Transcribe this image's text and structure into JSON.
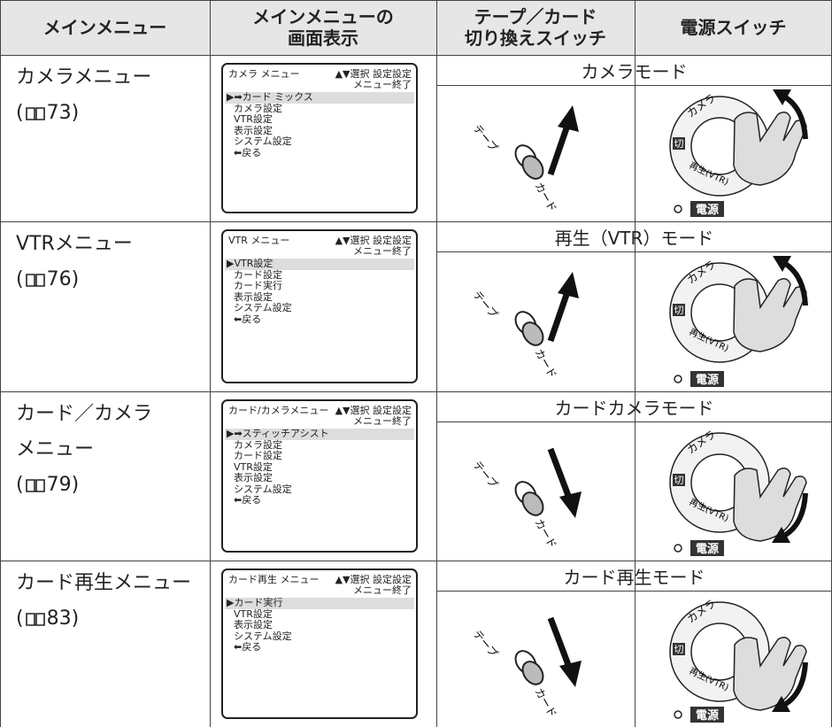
{
  "header": [
    [
      "メインメニュー"
    ],
    [
      "メインメニューの",
      "画面表示"
    ],
    [
      "テープ／カード",
      "切り換えスイッチ"
    ],
    [
      "電源スイッチ"
    ]
  ],
  "rows": [
    {
      "name": [
        "カメラメニュー"
      ],
      "ref": [
        "(",
        "73)"
      ],
      "screen": {
        "title": "カメラ メニュー",
        "controls": "▲▼選択 設定設定",
        "exit": "メニュー終了",
        "items": [
          "▶➡カード ミックス",
          "カメラ設定",
          "VTR設定",
          "表示設定",
          "システム設定",
          "⬅戻る"
        ]
      },
      "mode": "カメラモード",
      "switch": {
        "tape": "テープ",
        "card": "カード"
      },
      "power": {
        "camera": "カメラ",
        "off": "切",
        "play": "再生(VTR)",
        "label": "電源"
      }
    },
    {
      "name": [
        "VTRメニュー"
      ],
      "ref": [
        "(",
        "76)"
      ],
      "screen": {
        "title": "VTR メニュー",
        "controls": "▲▼選択 設定設定",
        "exit": "メニュー終了",
        "items": [
          "▶VTR設定",
          "カード設定",
          "カード実行",
          "表示設定",
          "システム設定",
          "⬅戻る"
        ]
      },
      "mode": "再生（VTR）モード",
      "switch": {
        "tape": "テープ",
        "card": "カード"
      },
      "power": {
        "camera": "カメラ",
        "off": "切",
        "play": "再生(VTR)",
        "label": "電源"
      }
    },
    {
      "name": [
        "カード／カメラ",
        "メニュー"
      ],
      "ref": [
        "(",
        "79)"
      ],
      "screen": {
        "title": "カード/カメラメニュー",
        "controls": "▲▼選択 設定設定",
        "exit": "メニュー終了",
        "items": [
          "▶➡スティッチアシスト",
          "カメラ設定",
          "カード設定",
          "VTR設定",
          "表示設定",
          "システム設定",
          "⬅戻る"
        ]
      },
      "mode": "カードカメラモード",
      "switch": {
        "tape": "テープ",
        "card": "カード"
      },
      "power": {
        "camera": "カメラ",
        "off": "切",
        "play": "再生(VTR)",
        "label": "電源"
      }
    },
    {
      "name": [
        "カード再生メニュー"
      ],
      "ref": [
        "(",
        "83)"
      ],
      "screen": {
        "title": "カード再生 メニュー",
        "controls": "▲▼選択 設定設定",
        "exit": "メニュー終了",
        "items": [
          "▶カード実行",
          "VTR設定",
          "表示設定",
          "システム設定",
          "⬅戻る"
        ]
      },
      "mode": "カード再生モード",
      "switch": {
        "tape": "テープ",
        "card": "カード"
      },
      "power": {
        "camera": "カメラ",
        "off": "切",
        "play": "再生(VTR)",
        "label": "電源"
      }
    }
  ]
}
